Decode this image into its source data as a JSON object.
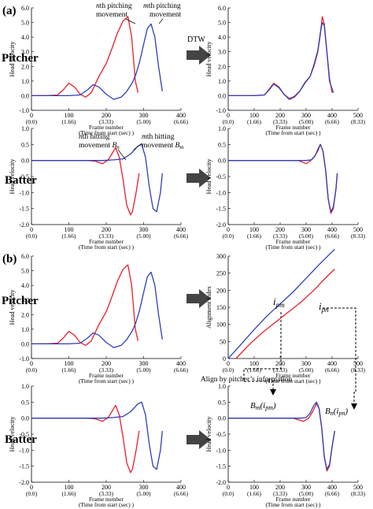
{
  "panel_labels": {
    "a": "(a)",
    "b": "(b)"
  },
  "row_labels": {
    "pitcher": "Pitcher",
    "batter": "Batter"
  },
  "arrow_dtw": "DTW",
  "align_text": "Align by pitcher’s information",
  "common": {
    "ylabel": "Head velocity",
    "alignment_ylabel": "Alignment index",
    "xlabel_line1": "Frame number",
    "xlabel_line2": "(Time from start (sec) )",
    "colors": {
      "n": "#e8202a",
      "m": "#2e3fb8"
    }
  },
  "chart_data": [
    {
      "id": "a_pitcher_left",
      "type": "line",
      "panel": "(a)",
      "row": "Pitcher",
      "xlim": [
        0,
        400
      ],
      "ylim": [
        -1.0,
        6.0
      ],
      "yticks": [
        -1.0,
        0.0,
        1.0,
        2.0,
        3.0,
        4.0,
        5.0,
        6.0
      ],
      "xticks": [
        0,
        100,
        200,
        300,
        400
      ],
      "xticklabels_sec": [
        "(0.0)",
        "(1.66)",
        "(3.33)",
        "(5.00)",
        "(6.66)"
      ],
      "annotations": [
        {
          "text": "nth pitching movement"
        },
        {
          "text": "mth pitching movement"
        }
      ],
      "series": [
        {
          "color": "#e8202a",
          "x": [
            0,
            40,
            70,
            85,
            100,
            115,
            130,
            145,
            160,
            180,
            200,
            215,
            230,
            245,
            258,
            268,
            278,
            285
          ],
          "y": [
            0,
            0,
            0.05,
            0.4,
            0.85,
            0.6,
            0.1,
            -0.1,
            0.2,
            1.3,
            2.2,
            3.2,
            4.3,
            5.1,
            5.4,
            4.0,
            1.0,
            0.2
          ]
        },
        {
          "color": "#2e3fb8",
          "x": [
            0,
            100,
            130,
            150,
            165,
            180,
            200,
            220,
            240,
            255,
            270,
            280,
            290,
            300,
            310,
            320,
            330,
            340,
            350
          ],
          "y": [
            0,
            0,
            0.05,
            0.4,
            0.75,
            0.6,
            0.1,
            -0.25,
            -0.1,
            0.3,
            0.9,
            1.5,
            2.4,
            3.5,
            4.6,
            4.9,
            4.0,
            2.0,
            0.3
          ]
        }
      ]
    },
    {
      "id": "a_pitcher_right",
      "type": "line",
      "panel": "(a)",
      "row": "Pitcher",
      "xlim": [
        0,
        500
      ],
      "ylim": [
        -1.0,
        6.0
      ],
      "yticks": [
        -1.0,
        0.0,
        1.0,
        2.0,
        3.0,
        4.0,
        5.0,
        6.0
      ],
      "xticks": [
        0,
        100,
        200,
        300,
        400,
        500
      ],
      "xticklabels_sec": [
        "(0.0)",
        "(1.66)",
        "(3.33)",
        "(5.00)",
        "(6.66)",
        "(8.33)"
      ],
      "series": [
        {
          "color": "#e8202a",
          "x": [
            0,
            100,
            140,
            160,
            175,
            195,
            215,
            235,
            255,
            275,
            295,
            315,
            330,
            345,
            355,
            362,
            370,
            380,
            390,
            400
          ],
          "y": [
            0,
            0,
            0.05,
            0.5,
            0.85,
            0.6,
            0.1,
            -0.2,
            -0.05,
            0.3,
            0.9,
            1.3,
            2.0,
            3.0,
            4.2,
            5.4,
            4.9,
            3.0,
            1.2,
            0.2
          ]
        },
        {
          "color": "#2e3fb8",
          "x": [
            0,
            100,
            140,
            160,
            175,
            195,
            215,
            235,
            255,
            275,
            295,
            315,
            330,
            345,
            355,
            362,
            370,
            380,
            390,
            405
          ],
          "y": [
            0,
            0,
            0.05,
            0.45,
            0.8,
            0.55,
            0.1,
            -0.25,
            -0.1,
            0.3,
            0.85,
            1.3,
            2.1,
            3.1,
            4.3,
            5.0,
            4.8,
            3.0,
            1.0,
            0.2
          ]
        }
      ]
    },
    {
      "id": "a_batter_left",
      "type": "line",
      "panel": "(a)",
      "row": "Batter",
      "xlim": [
        0,
        400
      ],
      "ylim": [
        -2.0,
        1.0
      ],
      "yticks": [
        -2.0,
        -1.5,
        -1.0,
        -0.5,
        0.0,
        0.5,
        1.0
      ],
      "xticks": [
        0,
        100,
        200,
        300,
        400
      ],
      "xticklabels_sec": [
        "(0.0)",
        "(1.66)",
        "(3.33)",
        "(5.00)",
        "(6.66)"
      ],
      "annotations": [
        {
          "text": "nth hitting movement Bn"
        },
        {
          "text": "mth hitting movement Bm"
        }
      ],
      "series": [
        {
          "color": "#e8202a",
          "x": [
            0,
            150,
            170,
            190,
            205,
            215,
            225,
            235,
            245,
            255,
            265,
            270,
            280,
            288
          ],
          "y": [
            0,
            0,
            -0.02,
            -0.1,
            0.02,
            0.2,
            0.4,
            0.1,
            -0.6,
            -1.4,
            -1.7,
            -1.6,
            -1.0,
            -0.4
          ]
        },
        {
          "color": "#2e3fb8",
          "x": [
            0,
            190,
            220,
            245,
            265,
            285,
            295,
            305,
            315,
            325,
            335,
            345,
            350
          ],
          "y": [
            0,
            0,
            0.02,
            0.05,
            0.2,
            0.45,
            0.5,
            0.1,
            -0.8,
            -1.5,
            -1.6,
            -1.0,
            -0.4
          ]
        }
      ]
    },
    {
      "id": "a_batter_right",
      "type": "line",
      "panel": "(a)",
      "row": "Batter",
      "xlim": [
        0,
        500
      ],
      "ylim": [
        -2.0,
        1.0
      ],
      "yticks": [
        -2.0,
        -1.5,
        -1.0,
        -0.5,
        0.0,
        0.5,
        1.0
      ],
      "xticks": [
        0,
        100,
        200,
        300,
        400,
        500
      ],
      "xticklabels_sec": [
        "(0.0)",
        "(1.66)",
        "(3.33)",
        "(5.00)",
        "(6.66)",
        "(8.33)"
      ],
      "series": [
        {
          "color": "#e8202a",
          "x": [
            0,
            270,
            285,
            300,
            315,
            330,
            345,
            355,
            365,
            375,
            385,
            395,
            405,
            415,
            420
          ],
          "y": [
            0,
            0,
            -0.05,
            -0.1,
            -0.02,
            0.1,
            0.3,
            0.5,
            0.3,
            -0.3,
            -1.2,
            -1.65,
            -1.5,
            -0.9,
            -0.4
          ]
        },
        {
          "color": "#2e3fb8",
          "x": [
            0,
            300,
            320,
            335,
            345,
            355,
            365,
            375,
            385,
            395,
            405,
            415,
            420
          ],
          "y": [
            0,
            0,
            0.02,
            0.15,
            0.35,
            0.5,
            0.3,
            -0.3,
            -1.2,
            -1.6,
            -1.45,
            -0.9,
            -0.4
          ]
        }
      ]
    },
    {
      "id": "b_pitcher_left",
      "type": "line",
      "panel": "(b)",
      "row": "Pitcher",
      "xlim": [
        0,
        400
      ],
      "ylim": [
        -1.0,
        6.0
      ],
      "yticks": [
        -1.0,
        0.0,
        1.0,
        2.0,
        3.0,
        4.0,
        5.0,
        6.0
      ],
      "xticks": [
        0,
        100,
        200,
        300,
        400
      ],
      "xticklabels_sec": [
        "(0.0)",
        "(1.66)",
        "(3.33)",
        "(5.00)",
        "(6.66)"
      ],
      "series": [
        {
          "color": "#e8202a",
          "x": [
            0,
            40,
            70,
            85,
            100,
            115,
            130,
            145,
            160,
            180,
            200,
            215,
            230,
            245,
            258,
            268,
            278,
            285
          ],
          "y": [
            0,
            0,
            0.05,
            0.4,
            0.85,
            0.6,
            0.1,
            -0.1,
            0.2,
            1.3,
            2.2,
            3.2,
            4.3,
            5.1,
            5.4,
            4.0,
            1.0,
            0.2
          ]
        },
        {
          "color": "#2e3fb8",
          "x": [
            0,
            100,
            130,
            150,
            165,
            180,
            200,
            220,
            240,
            255,
            270,
            280,
            290,
            300,
            310,
            320,
            330,
            340,
            350
          ],
          "y": [
            0,
            0,
            0.05,
            0.4,
            0.75,
            0.6,
            0.1,
            -0.25,
            -0.1,
            0.3,
            0.9,
            1.5,
            2.4,
            3.5,
            4.6,
            4.9,
            4.0,
            2.0,
            0.3
          ]
        }
      ]
    },
    {
      "id": "b_alignment",
      "type": "line",
      "panel": "(b)",
      "row": "Pitcher",
      "xlim": [
        0,
        500
      ],
      "ylim": [
        0,
        300
      ],
      "yticks": [
        0,
        50,
        100,
        150,
        200,
        250,
        300
      ],
      "xticks": [
        0,
        100,
        200,
        300,
        400,
        500
      ],
      "xticklabels_sec": [
        "(0.0)",
        "(1.66)",
        "(3.33)",
        "(5.00)",
        "(6.66)",
        "(8.33)"
      ],
      "annotations": [
        {
          "text": "ipm"
        },
        {
          "text": "ipn"
        }
      ],
      "series": [
        {
          "color": "#2e3fb8",
          "x": [
            0,
            50,
            100,
            150,
            200,
            250,
            300,
            350,
            410
          ],
          "y": [
            0,
            42,
            85,
            125,
            160,
            195,
            235,
            275,
            320
          ]
        },
        {
          "color": "#e8202a",
          "x": [
            30,
            80,
            130,
            180,
            230,
            280,
            330,
            380,
            410
          ],
          "y": [
            0,
            40,
            75,
            105,
            135,
            165,
            200,
            240,
            262
          ]
        }
      ]
    },
    {
      "id": "b_batter_left",
      "type": "line",
      "panel": "(b)",
      "row": "Batter",
      "xlim": [
        0,
        400
      ],
      "ylim": [
        -2.0,
        1.0
      ],
      "yticks": [
        -2.0,
        -1.5,
        -1.0,
        -0.5,
        0.0,
        0.5,
        1.0
      ],
      "xticks": [
        0,
        100,
        200,
        300,
        400
      ],
      "xticklabels_sec": [
        "(0.0)",
        "(1.66)",
        "(3.33)",
        "(5.00)",
        "(6.66)"
      ],
      "series": [
        {
          "color": "#e8202a",
          "x": [
            0,
            150,
            170,
            190,
            205,
            215,
            225,
            235,
            245,
            255,
            265,
            270,
            280,
            288
          ],
          "y": [
            0,
            0,
            -0.02,
            -0.1,
            0.02,
            0.2,
            0.4,
            0.1,
            -0.6,
            -1.4,
            -1.7,
            -1.6,
            -1.0,
            -0.4
          ]
        },
        {
          "color": "#2e3fb8",
          "x": [
            0,
            190,
            220,
            245,
            265,
            285,
            295,
            305,
            315,
            325,
            335,
            345,
            350
          ],
          "y": [
            0,
            0,
            0.02,
            0.05,
            0.2,
            0.45,
            0.5,
            0.1,
            -0.8,
            -1.5,
            -1.6,
            -1.0,
            -0.4
          ]
        }
      ]
    },
    {
      "id": "b_batter_right",
      "type": "line",
      "panel": "(b)",
      "row": "Batter",
      "xlim": [
        0,
        500
      ],
      "ylim": [
        -2.0,
        1.0
      ],
      "yticks": [
        -2.0,
        -1.5,
        -1.0,
        -0.5,
        0.0,
        0.5,
        1.0
      ],
      "xticks": [
        0,
        100,
        200,
        300,
        400,
        500
      ],
      "xticklabels_sec": [
        "(0.0)",
        "(1.66)",
        "(3.33)",
        "(5.00)",
        "(6.66)",
        "(8.33)"
      ],
      "annotations": [
        {
          "text": "Bm(ipm)"
        },
        {
          "text": "Bn(ipn)"
        }
      ],
      "series": [
        {
          "color": "#e8202a",
          "x": [
            0,
            250,
            270,
            290,
            310,
            325,
            340,
            350,
            360,
            370,
            380,
            390,
            400,
            410
          ],
          "y": [
            0,
            0,
            -0.05,
            -0.1,
            0.0,
            0.2,
            0.45,
            0.3,
            -0.3,
            -1.2,
            -1.65,
            -1.5,
            -0.9,
            -0.4
          ]
        },
        {
          "color": "#2e3fb8",
          "x": [
            0,
            280,
            300,
            315,
            330,
            340,
            350,
            360,
            370,
            380,
            390,
            400,
            410
          ],
          "y": [
            0,
            0,
            0.02,
            0.15,
            0.4,
            0.5,
            0.3,
            -0.3,
            -1.2,
            -1.6,
            -1.45,
            -0.9,
            -0.4
          ]
        }
      ]
    }
  ]
}
